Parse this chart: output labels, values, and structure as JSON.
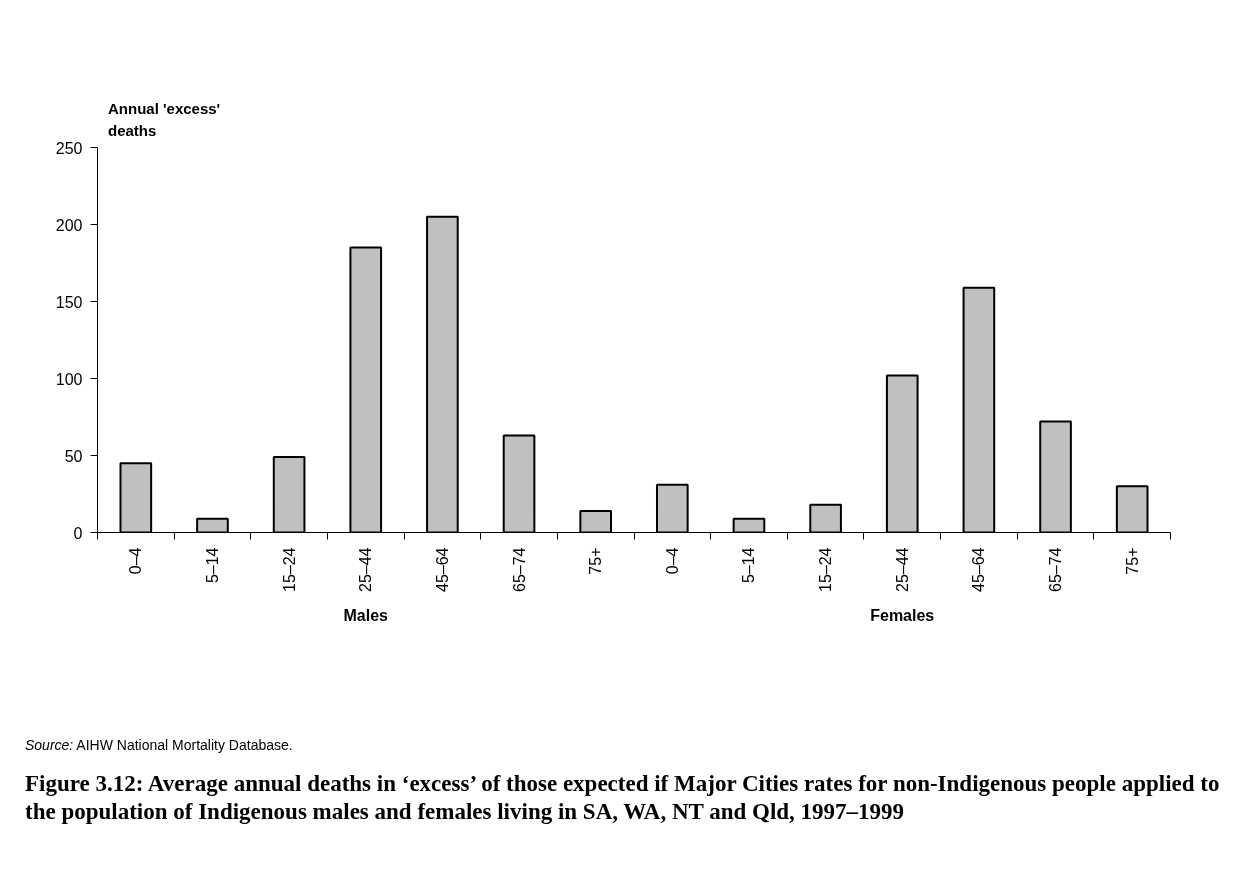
{
  "chart_data": {
    "type": "bar",
    "title": "Figure 3.12: Average annual deaths in ‘excess’ of those expected if Major Cities rates for non-Indigenous people applied to the population of Indigenous males and females living in SA, WA, NT and Qld, 1997–1999",
    "ylabel": "Annual 'excess' deaths",
    "categories": [
      "0–4",
      "5–14",
      "15–24",
      "25–44",
      "45–64",
      "65–74",
      "75+",
      "0–4",
      "5–14",
      "15–24",
      "25–44",
      "45–64",
      "65–74",
      "75+"
    ],
    "values": [
      45,
      9,
      49,
      185,
      205,
      63,
      14,
      31,
      9,
      18,
      102,
      159,
      72,
      30
    ],
    "color": "#c0c0c0",
    "ylim": [
      0,
      250
    ],
    "yticks": [
      0,
      50,
      100,
      150,
      200,
      250
    ],
    "annotations": [
      "Males",
      "Females",
      "Source: AIHW National Mortality Database."
    ]
  }
}
